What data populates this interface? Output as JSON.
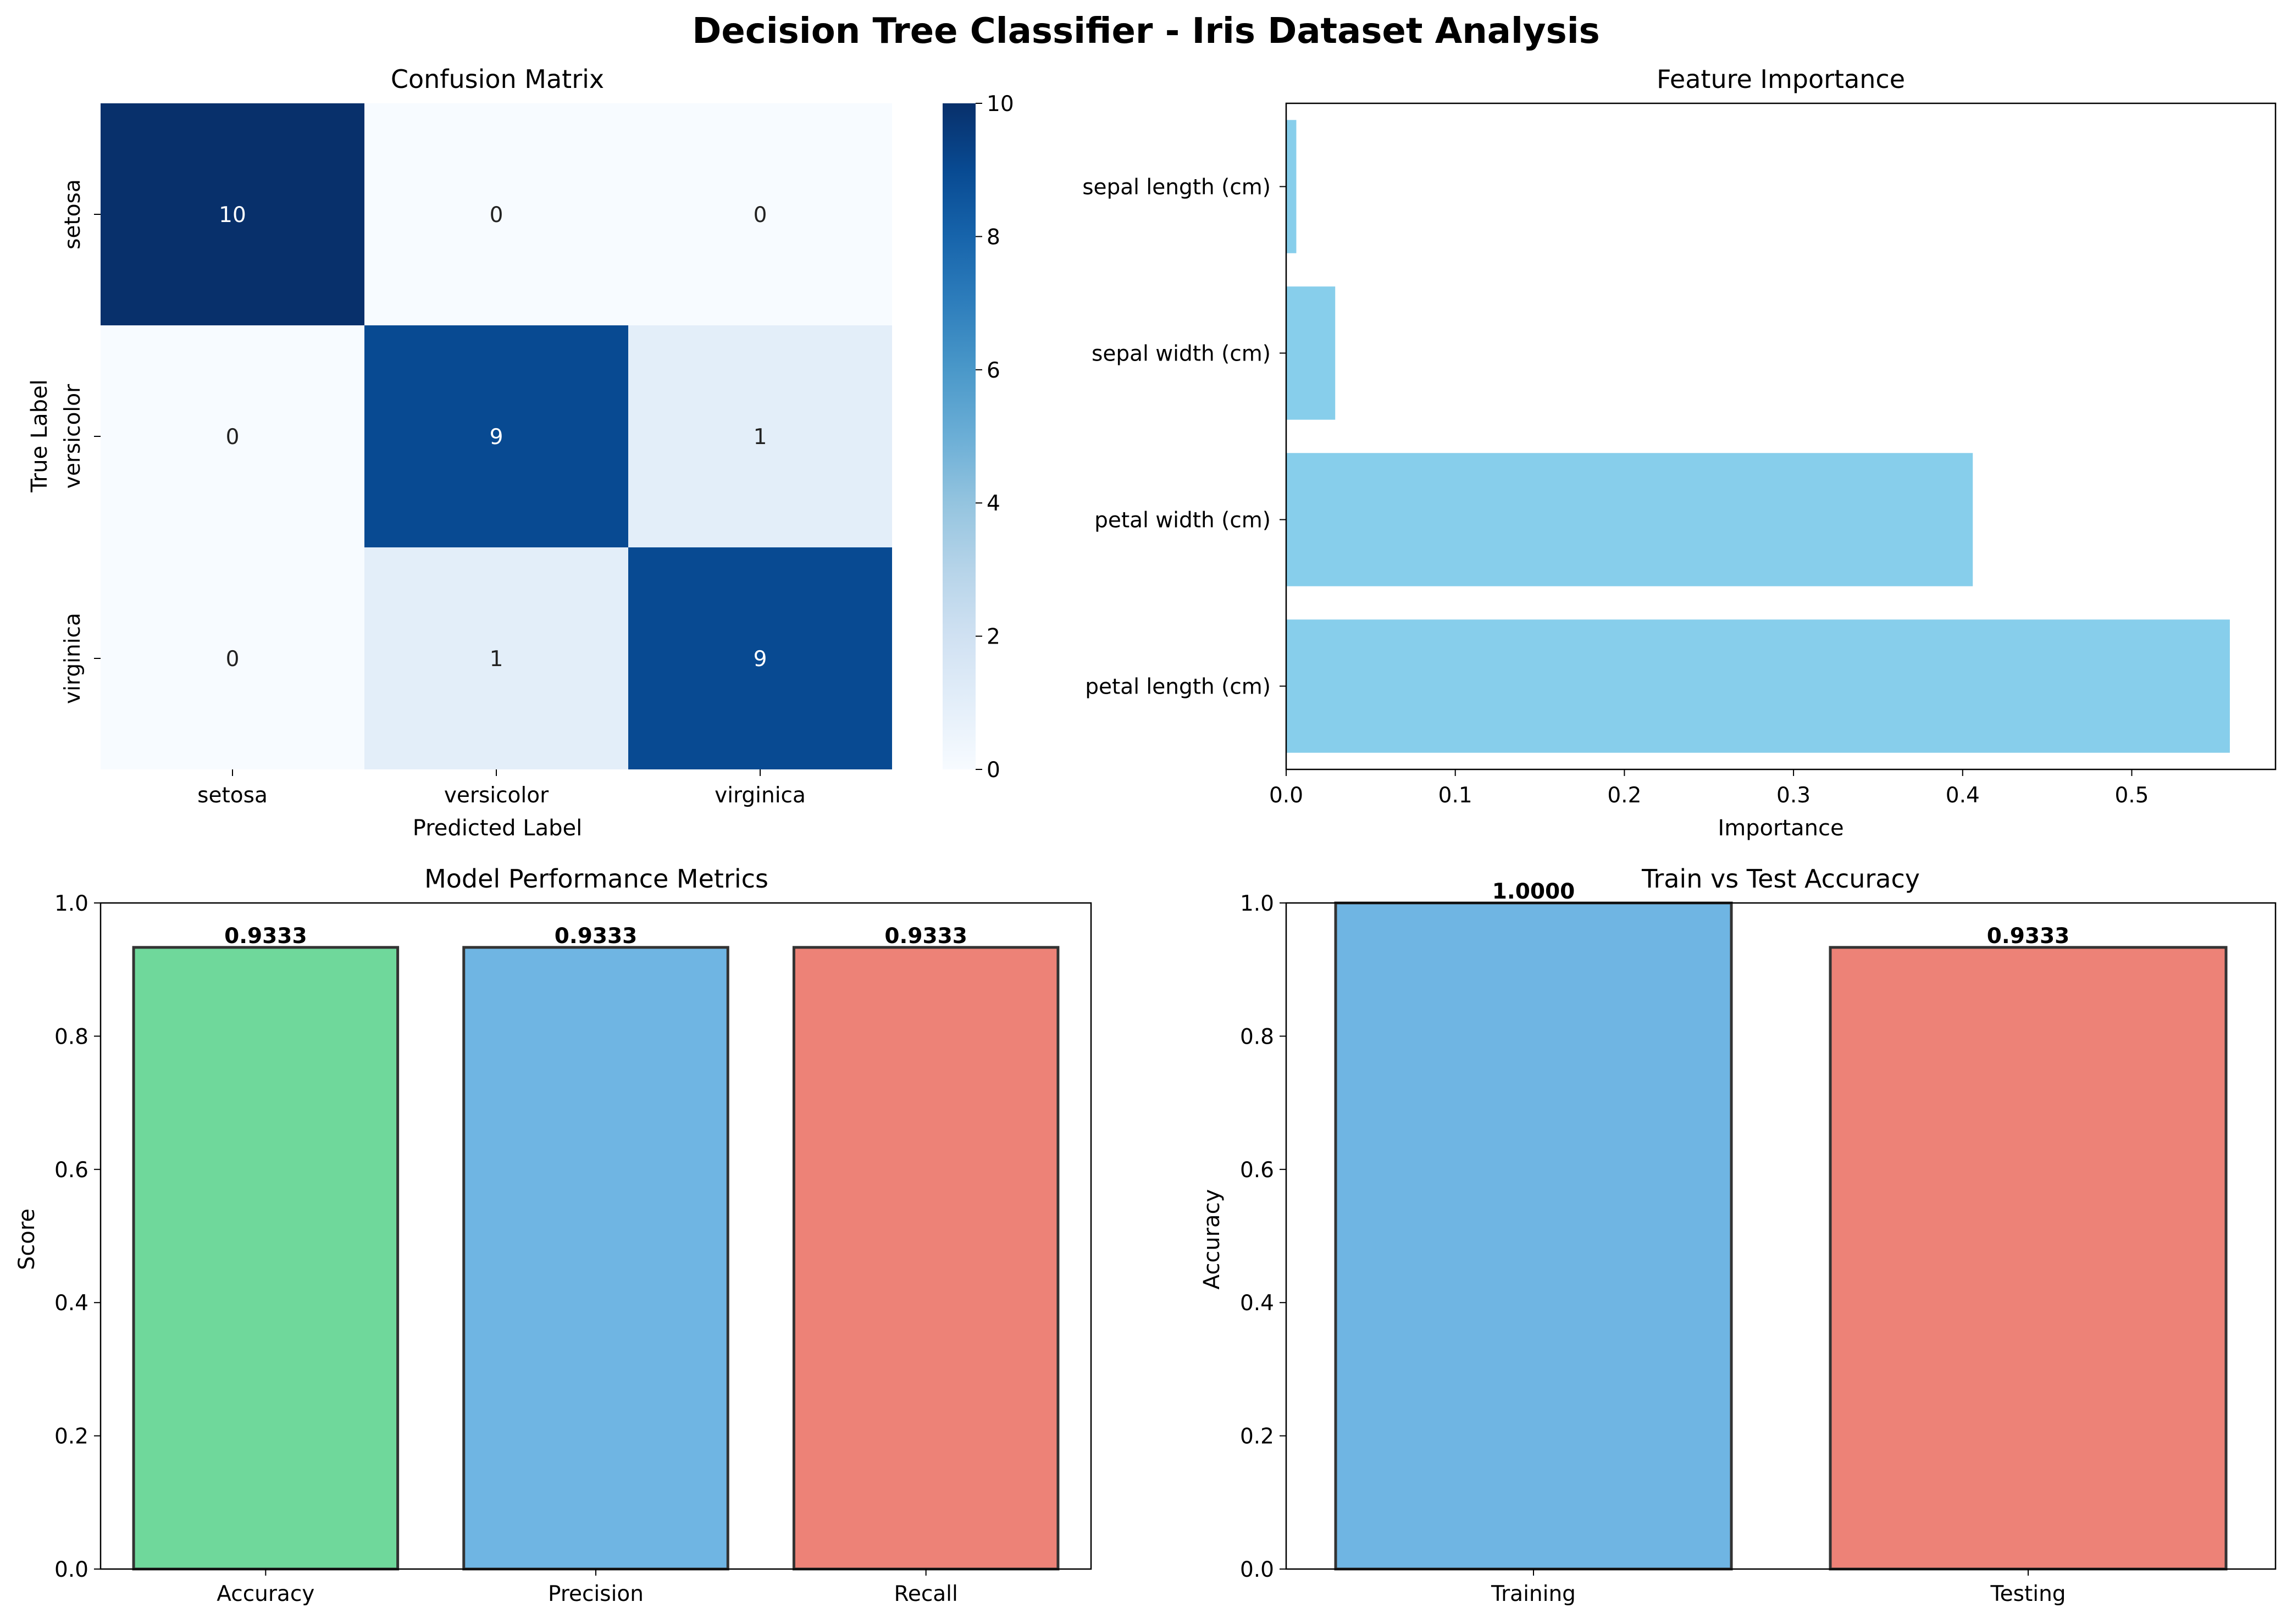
{
  "figure": {
    "title": "Decision Tree Classifier - Iris Dataset Analysis"
  },
  "colors": {
    "feature_bar": "#87ceeb",
    "accuracy_bar": "#6fd89b",
    "precision_bar": "#6fb5e3",
    "recall_bar": "#ed8277",
    "training_bar": "#6fb5e3",
    "testing_bar": "#ed8277",
    "bar_edge": "#333333",
    "cmap_low": "#f7fbff",
    "cmap_high": "#08306b"
  },
  "chart_data": [
    {
      "type": "heatmap",
      "title": "Confusion Matrix",
      "xlabel": "Predicted Label",
      "ylabel": "True Label",
      "x_categories": [
        "setosa",
        "versicolor",
        "virginica"
      ],
      "y_categories": [
        "setosa",
        "versicolor",
        "virginica"
      ],
      "values": [
        [
          10,
          0,
          0
        ],
        [
          0,
          9,
          1
        ],
        [
          0,
          1,
          9
        ]
      ],
      "colorbar": {
        "min": 0,
        "max": 10,
        "ticks": [
          "0",
          "2",
          "4",
          "6",
          "8",
          "10"
        ],
        "colormap": "Blues"
      }
    },
    {
      "type": "bar",
      "orientation": "horizontal",
      "title": "Feature Importance",
      "xlabel": "Importance",
      "ylabel": "",
      "categories": [
        "petal length (cm)",
        "petal width (cm)",
        "sepal width (cm)",
        "sepal length (cm)"
      ],
      "values": [
        0.558,
        0.406,
        0.029,
        0.006
      ],
      "xlim": [
        0,
        0.585
      ],
      "xticks": [
        "0.0",
        "0.1",
        "0.2",
        "0.3",
        "0.4",
        "0.5"
      ]
    },
    {
      "type": "bar",
      "title": "Model Performance Metrics",
      "xlabel": "",
      "ylabel": "Score",
      "categories": [
        "Accuracy",
        "Precision",
        "Recall"
      ],
      "values": [
        0.9333,
        0.9333,
        0.9333
      ],
      "value_labels": [
        "0.9333",
        "0.9333",
        "0.9333"
      ],
      "ylim": [
        0,
        1.0
      ],
      "yticks": [
        "0.0",
        "0.2",
        "0.4",
        "0.6",
        "0.8",
        "1.0"
      ]
    },
    {
      "type": "bar",
      "title": "Train vs Test Accuracy",
      "xlabel": "",
      "ylabel": "Accuracy",
      "categories": [
        "Training",
        "Testing"
      ],
      "values": [
        1.0,
        0.9333
      ],
      "value_labels": [
        "1.0000",
        "0.9333"
      ],
      "ylim": [
        0,
        1.0
      ],
      "yticks": [
        "0.0",
        "0.2",
        "0.4",
        "0.6",
        "0.8",
        "1.0"
      ]
    }
  ]
}
